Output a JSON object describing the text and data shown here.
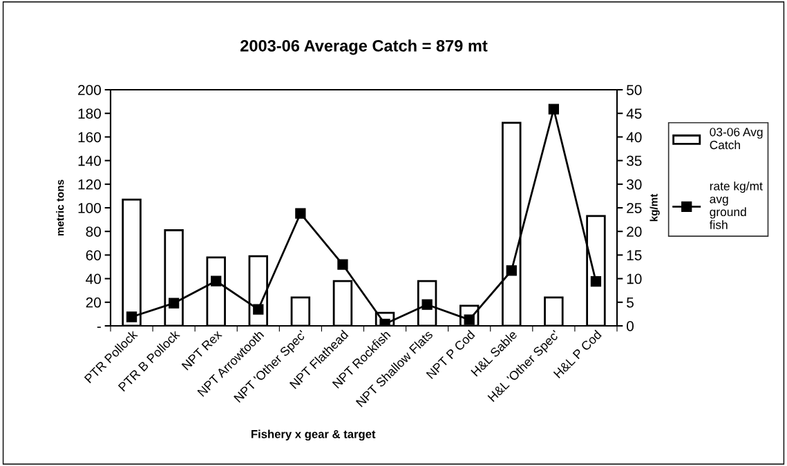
{
  "chart_data": {
    "type": "bar",
    "title": "2003-06 Average Catch = 879 mt",
    "xlabel": "Fishery x gear & target",
    "ylabel": "metric tons",
    "y2label": "kg/mt",
    "categories": [
      "PTR Pollock",
      "PTR B Pollock",
      "NPT Rex",
      "NPT Arrowtooth",
      "NPT 'Other Spec'",
      "NPT Flathead",
      "NPT Rockfish",
      "NPT Shallow Flats",
      "NPT P Cod",
      "H&L Sable",
      "H&L 'Other Spec'",
      "H&L P Cod"
    ],
    "series": [
      {
        "name": "03-06 Avg\nCatch",
        "color": "#ffffff",
        "values": [
          107,
          81,
          58,
          59,
          24,
          38,
          11,
          38,
          17,
          172,
          24,
          93
        ]
      },
      {
        "name": "rate kg/mt\navg\nground\nfish",
        "type": "line",
        "axis": "y2",
        "color": "#000000",
        "marker": "square",
        "values": [
          1.9,
          4.8,
          9.5,
          3.5,
          23.8,
          13,
          0.4,
          4.5,
          1.3,
          11.7,
          45.9,
          9.4
        ]
      }
    ],
    "ylim": [
      0,
      200
    ],
    "yticks": [
      {
        "value": 0,
        "label": "-"
      },
      20,
      40,
      60,
      80,
      100,
      120,
      140,
      160,
      180,
      200
    ],
    "y2lim": [
      0,
      50
    ],
    "y2ticks": [
      0,
      5,
      10,
      15,
      20,
      25,
      30,
      35,
      40,
      45,
      50
    ],
    "grid": false,
    "legend": "right"
  }
}
